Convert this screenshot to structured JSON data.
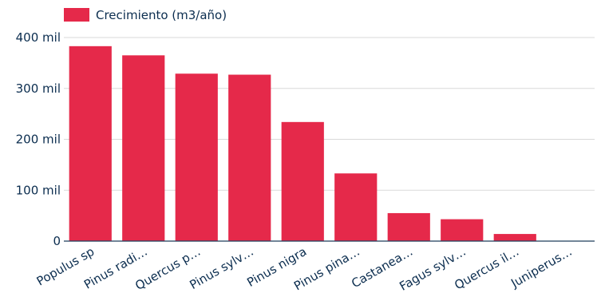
{
  "chart_data": {
    "type": "bar",
    "legend": {
      "label": "Crecimiento (m3/año)",
      "position": "top-left"
    },
    "categories": [
      "Populus sp",
      "Pinus radi…",
      "Quercus p…",
      "Pinus sylv…",
      "Pinus nigra",
      "Pinus pina…",
      "Castanea…",
      "Fagus sylv…",
      "Quercus il…",
      "Juniperus…"
    ],
    "series": [
      {
        "name": "Crecimiento (m3/año)",
        "values": [
          383000,
          365000,
          329000,
          327000,
          234000,
          133000,
          55000,
          43000,
          14000,
          0
        ],
        "color": "#e5294a"
      }
    ],
    "ylim": [
      0,
      400000
    ],
    "yticks": [
      0,
      100000,
      200000,
      300000,
      400000
    ],
    "ytick_labels": [
      "0",
      "100 mil",
      "200 mil",
      "300 mil",
      "400 mil"
    ],
    "grid": true,
    "colors": {
      "bar": "#e5294a",
      "text": "#0b2d4f",
      "grid": "#d9d9d9",
      "axis": "#1f3f5c"
    }
  }
}
